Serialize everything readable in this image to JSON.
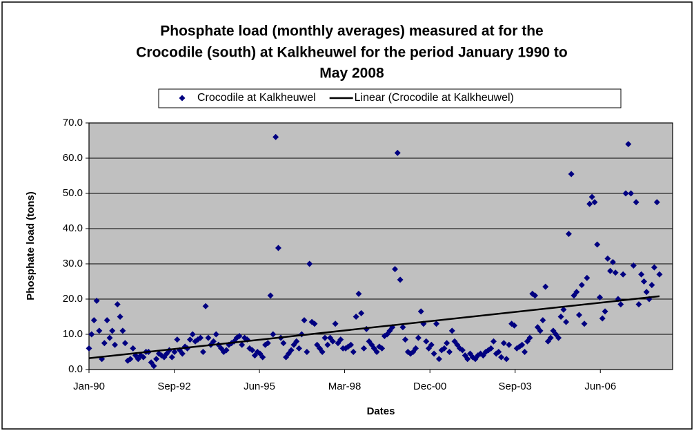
{
  "chart_data": {
    "type": "scatter",
    "title": [
      "Phosphate load (monthly averages) measured at for the",
      "Crocodile (south) at Kalkheuwel for the period January 1990 to",
      "May 2008"
    ],
    "xlabel": "Dates",
    "ylabel": "Phosphate load (tons)",
    "xlim": [
      "1990-01-01",
      "2008-10-02"
    ],
    "xticks": [
      {
        "value": "1990-01-01",
        "label": "Jan-90"
      },
      {
        "value": "1992-09-27",
        "label": "Sep-92"
      },
      {
        "value": "1995-06-24",
        "label": "Jun-95"
      },
      {
        "value": "1998-03-20",
        "label": "Mar-98"
      },
      {
        "value": "2000-12-15",
        "label": "Dec-00"
      },
      {
        "value": "2003-09-11",
        "label": "Sep-03"
      },
      {
        "value": "2006-06-07",
        "label": "Jun-06"
      }
    ],
    "ylim": [
      0,
      70
    ],
    "yticks": [
      {
        "value": 0,
        "label": "0.0"
      },
      {
        "value": 10,
        "label": "10.0"
      },
      {
        "value": 20,
        "label": "20.0"
      },
      {
        "value": 30,
        "label": "30.0"
      },
      {
        "value": 40,
        "label": "40.0"
      },
      {
        "value": 50,
        "label": "50.0"
      },
      {
        "value": 60,
        "label": "60.0"
      },
      {
        "value": 70,
        "label": "70.0"
      }
    ],
    "grid": true,
    "legend": "top",
    "series": [
      {
        "name": "Crocodile at Kalkheuwel",
        "color": "#000080",
        "marker": "diamond",
        "x": [
          "1990-01",
          "1990-02",
          "1990-03",
          "1990-04",
          "1990-05",
          "1990-06",
          "1990-07",
          "1990-08",
          "1990-09",
          "1990-10",
          "1990-11",
          "1990-12",
          "1991-01",
          "1991-02",
          "1991-03",
          "1991-04",
          "1991-05",
          "1991-06",
          "1991-07",
          "1991-08",
          "1991-09",
          "1991-10",
          "1991-11",
          "1991-12",
          "1992-01",
          "1992-02",
          "1992-03",
          "1992-04",
          "1992-05",
          "1992-06",
          "1992-07",
          "1992-08",
          "1992-09",
          "1992-10",
          "1992-11",
          "1992-12",
          "1993-01",
          "1993-02",
          "1993-03",
          "1993-04",
          "1993-05",
          "1993-06",
          "1993-07",
          "1993-08",
          "1993-09",
          "1993-10",
          "1993-11",
          "1993-12",
          "1994-01",
          "1994-02",
          "1994-03",
          "1994-04",
          "1994-05",
          "1994-06",
          "1994-07",
          "1994-08",
          "1994-09",
          "1994-10",
          "1994-11",
          "1994-12",
          "1995-01",
          "1995-02",
          "1995-03",
          "1995-04",
          "1995-05",
          "1995-06",
          "1995-07",
          "1995-08",
          "1995-09",
          "1995-10",
          "1995-11",
          "1995-12",
          "1996-01",
          "1996-02",
          "1996-03",
          "1996-04",
          "1996-05",
          "1996-06",
          "1996-07",
          "1996-08",
          "1996-09",
          "1996-10",
          "1996-11",
          "1996-12",
          "1997-01",
          "1997-02",
          "1997-03",
          "1997-04",
          "1997-05",
          "1997-06",
          "1997-07",
          "1997-08",
          "1997-09",
          "1997-10",
          "1997-11",
          "1997-12",
          "1998-01",
          "1998-02",
          "1998-03",
          "1998-04",
          "1998-05",
          "1998-06",
          "1998-07",
          "1998-08",
          "1998-09",
          "1998-10",
          "1998-11",
          "1998-12",
          "1999-01",
          "1999-02",
          "1999-03",
          "1999-04",
          "1999-05",
          "1999-06",
          "1999-07",
          "1999-08",
          "1999-09",
          "1999-10",
          "1999-11",
          "1999-12",
          "2000-01",
          "2000-02",
          "2000-03",
          "2000-04",
          "2000-05",
          "2000-06",
          "2000-07",
          "2000-08",
          "2000-09",
          "2000-10",
          "2000-11",
          "2000-12",
          "2001-01",
          "2001-02",
          "2001-03",
          "2001-04",
          "2001-05",
          "2001-06",
          "2001-07",
          "2001-08",
          "2001-09",
          "2001-10",
          "2001-11",
          "2001-12",
          "2002-01",
          "2002-02",
          "2002-03",
          "2002-04",
          "2002-05",
          "2002-06",
          "2002-07",
          "2002-08",
          "2002-09",
          "2002-10",
          "2002-11",
          "2002-12",
          "2003-01",
          "2003-02",
          "2003-03",
          "2003-04",
          "2003-05",
          "2003-06",
          "2003-07",
          "2003-08",
          "2003-09",
          "2003-10",
          "2003-11",
          "2003-12",
          "2004-01",
          "2004-02",
          "2004-03",
          "2004-04",
          "2004-05",
          "2004-06",
          "2004-07",
          "2004-08",
          "2004-09",
          "2004-10",
          "2004-11",
          "2004-12",
          "2005-01",
          "2005-02",
          "2005-03",
          "2005-04",
          "2005-05",
          "2005-06",
          "2005-07",
          "2005-08",
          "2005-09",
          "2005-10",
          "2005-11",
          "2005-12",
          "2006-01",
          "2006-02",
          "2006-03",
          "2006-04",
          "2006-05",
          "2006-06",
          "2006-07",
          "2006-08",
          "2006-09",
          "2006-10",
          "2006-11",
          "2006-12",
          "2007-01",
          "2007-02",
          "2007-03",
          "2007-04",
          "2007-05",
          "2007-06",
          "2007-07",
          "2007-08",
          "2007-09",
          "2007-10",
          "2007-11",
          "2007-12",
          "2008-01",
          "2008-02",
          "2008-03",
          "2008-04",
          "2008-05"
        ],
        "values": [
          6,
          10,
          14,
          19.5,
          11,
          3,
          7.5,
          14,
          9,
          11,
          7,
          18.5,
          15,
          11,
          7.5,
          2.5,
          3,
          6,
          4,
          3,
          4,
          3.5,
          5,
          5,
          2,
          1,
          3,
          4.5,
          4,
          3.5,
          4.5,
          5.5,
          3.5,
          5,
          8.5,
          5.5,
          4.5,
          6.5,
          6,
          8.5,
          10,
          8,
          8.5,
          9,
          5,
          18,
          9,
          7,
          8,
          10,
          7,
          6,
          5,
          5.5,
          7,
          7.5,
          8,
          9,
          9.5,
          7,
          9,
          8.5,
          6,
          5.5,
          4,
          5,
          4.5,
          3.5,
          7,
          7.5,
          21,
          10,
          66,
          34.5,
          9,
          7.5,
          3.5,
          4.5,
          5.5,
          7,
          8,
          6,
          10,
          14,
          5,
          30,
          13.5,
          13,
          7,
          6,
          5,
          9,
          7,
          9,
          8,
          13,
          7.5,
          8.5,
          6,
          6,
          6.5,
          7,
          5,
          15,
          21.5,
          16,
          6,
          11.5,
          8,
          7,
          6,
          5,
          6.5,
          6,
          9.5,
          10,
          11,
          12,
          28.5,
          61.5,
          25.5,
          12,
          8.5,
          5,
          4.5,
          5,
          6,
          9,
          16.5,
          13,
          8,
          6,
          7,
          4.5,
          13,
          3,
          5.5,
          6,
          7.5,
          5,
          11,
          8,
          7,
          6,
          5.5,
          4,
          3,
          4.5,
          3.5,
          3,
          4,
          4.5,
          4,
          5,
          5.5,
          6,
          8,
          4.5,
          5,
          3.5,
          7.5,
          3,
          7,
          13,
          12.5,
          6,
          6.5,
          7,
          5,
          8,
          9,
          21.5,
          21,
          12,
          11,
          14,
          23.5,
          8,
          9,
          11,
          10,
          9,
          15,
          17,
          13.5,
          38.5,
          55.5,
          21,
          22,
          15.5,
          24,
          13,
          26,
          47,
          49,
          47.5,
          35.5,
          20.5,
          14.5,
          16.5,
          31.5,
          28,
          30.5,
          27.5,
          20,
          18.5,
          27,
          50,
          64,
          50,
          29.5,
          47.5,
          18.5,
          27,
          25,
          22,
          20,
          24,
          29,
          47.5,
          27
        ]
      },
      {
        "name": "Linear (Crocodile at Kalkheuwel)",
        "color": "#000000",
        "marker": "line",
        "x": [
          "1990-01",
          "2008-05"
        ],
        "values": [
          3.2,
          20.8
        ]
      }
    ]
  }
}
